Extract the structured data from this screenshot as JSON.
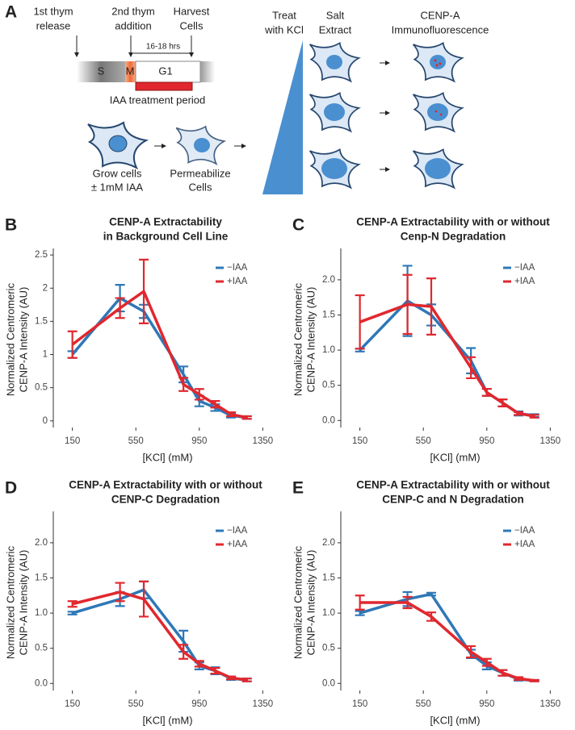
{
  "panel_a": {
    "label": "A",
    "timeline": {
      "release": [
        "1st thym",
        "release"
      ],
      "addition": [
        "2nd thym",
        "addition"
      ],
      "harvest": [
        "Harvest",
        "Cells"
      ],
      "duration": "16-18 hrs",
      "phases": [
        "S",
        "M",
        "G1"
      ],
      "treatment": "IAA treatment period"
    },
    "steps": {
      "grow": [
        "Grow cells",
        "± 1mM IAA"
      ],
      "permeabilize": [
        "Permeabilize",
        "Cells"
      ],
      "treat": [
        "Treat",
        "with KCl"
      ],
      "extract": [
        "Salt",
        "Extract"
      ],
      "immuno": [
        "CENP-A",
        "Immunofluorescence"
      ]
    }
  },
  "chart_data": [
    {
      "type": "line",
      "label": "B",
      "title": [
        "CENP-A Extractability",
        "in Background Cell Line"
      ],
      "xlabel": "[KCl] (mM)",
      "ylabel": [
        "Normalized Centromeric",
        "CENP-A Intensity (AU)"
      ],
      "x": [
        150,
        450,
        600,
        850,
        950,
        1050,
        1150,
        1250
      ],
      "xlim": [
        50,
        1450
      ],
      "xticks": [
        150,
        550,
        950,
        1350
      ],
      "ylim": [
        -0.1,
        2.55
      ],
      "yticks": [
        0,
        0.5,
        1,
        1.5,
        2,
        2.5
      ],
      "yticklabels_fixed": false,
      "legend": "upper right",
      "series": [
        {
          "name": "−IAA",
          "color": "#2e78b7",
          "values": [
            1.0,
            1.85,
            1.65,
            0.7,
            0.3,
            0.2,
            0.08,
            0.05
          ],
          "errors": [
            0.05,
            0.2,
            0.1,
            0.12,
            0.08,
            0.05,
            0.03,
            0.02
          ]
        },
        {
          "name": "+IAA",
          "color": "#e0282e",
          "values": [
            1.15,
            1.7,
            1.95,
            0.55,
            0.4,
            0.25,
            0.1,
            0.05
          ],
          "errors": [
            0.2,
            0.15,
            0.48,
            0.1,
            0.08,
            0.05,
            0.03,
            0.02
          ]
        }
      ]
    },
    {
      "type": "line",
      "label": "C",
      "title": [
        "CENP-A Extractability with or without",
        "Cenp-N Degradation"
      ],
      "xlabel": "[KCl] (mM)",
      "ylabel": [
        "Normalized Centromeric",
        "CENP-A Intensity (AU)"
      ],
      "x": [
        150,
        450,
        600,
        850,
        950,
        1050,
        1150,
        1250
      ],
      "xlim": [
        50,
        1450
      ],
      "xticks": [
        150,
        550,
        950,
        1350
      ],
      "ylim": [
        -0.1,
        2.4
      ],
      "yticks": [
        {
          "value": 0,
          "label": "0.0"
        },
        0.5,
        {
          "value": 1,
          "label": "1.0"
        },
        1.5,
        {
          "value": 2,
          "label": "2.0"
        }
      ],
      "legend": "upper right",
      "series": [
        {
          "name": "−IAA",
          "color": "#2e78b7",
          "values": [
            1.0,
            1.7,
            1.5,
            0.85,
            0.4,
            0.25,
            0.1,
            0.07
          ],
          "errors": [
            0.02,
            0.5,
            0.15,
            0.18,
            0.05,
            0.05,
            0.03,
            0.02
          ]
        },
        {
          "name": "+IAA",
          "color": "#e0282e",
          "values": [
            1.4,
            1.65,
            1.62,
            0.75,
            0.4,
            0.25,
            0.1,
            0.06
          ],
          "errors": [
            0.38,
            0.42,
            0.4,
            0.15,
            0.05,
            0.05,
            0.02,
            0.02
          ]
        }
      ]
    },
    {
      "type": "line",
      "label": "D",
      "title": [
        "CENP-A Extractability with or without",
        "CENP-C Degradation"
      ],
      "xlabel": "[KCl] (mM)",
      "ylabel": [
        "Normalized Centromeric",
        "CENP-A Intensity (AU)"
      ],
      "x": [
        150,
        450,
        600,
        850,
        950,
        1050,
        1150,
        1250
      ],
      "xlim": [
        50,
        1450
      ],
      "xticks": [
        150,
        550,
        950,
        1350
      ],
      "ylim": [
        -0.1,
        2.4
      ],
      "yticks": [
        {
          "value": 0,
          "label": "0.0"
        },
        0.5,
        {
          "value": 1,
          "label": "1.0"
        },
        1.5,
        {
          "value": 2,
          "label": "2.0"
        }
      ],
      "legend": "upper right",
      "series": [
        {
          "name": "−IAA",
          "color": "#2e78b7",
          "values": [
            1.0,
            1.2,
            1.33,
            0.6,
            0.25,
            0.18,
            0.07,
            0.05
          ],
          "errors": [
            0.02,
            0.1,
            0.12,
            0.15,
            0.05,
            0.05,
            0.02,
            0.02
          ]
        },
        {
          "name": "+IAA",
          "color": "#e0282e",
          "values": [
            1.13,
            1.3,
            1.2,
            0.45,
            0.28,
            0.18,
            0.08,
            0.05
          ],
          "errors": [
            0.04,
            0.13,
            0.25,
            0.1,
            0.04,
            0.04,
            0.02,
            0.02
          ]
        }
      ]
    },
    {
      "type": "line",
      "label": "E",
      "title": [
        "CENP-A Extractability with or without",
        "CENP-C and N Degradation"
      ],
      "xlabel": "[KCl] (mM)",
      "ylabel": [
        "Normalized Centromeric",
        "CENP-A Intensity (AU)"
      ],
      "x": [
        150,
        450,
        600,
        850,
        950,
        1050,
        1150,
        1250
      ],
      "xlim": [
        50,
        1450
      ],
      "xticks": [
        150,
        550,
        950,
        1350
      ],
      "ylim": [
        -0.1,
        2.4
      ],
      "yticks": [
        {
          "value": 0,
          "label": "0.0"
        },
        0.5,
        {
          "value": 1,
          "label": "1.0"
        },
        1.5,
        {
          "value": 2,
          "label": "2.0"
        }
      ],
      "legend": "upper right",
      "series": [
        {
          "name": "−IAA",
          "color": "#2e78b7",
          "values": [
            1.0,
            1.2,
            1.27,
            0.42,
            0.25,
            0.15,
            0.06,
            0.04
          ],
          "errors": [
            0.03,
            0.1,
            0.02,
            0.06,
            0.05,
            0.04,
            0.02,
            0.01
          ]
        },
        {
          "name": "+IAA",
          "color": "#e0282e",
          "values": [
            1.15,
            1.15,
            0.95,
            0.45,
            0.3,
            0.15,
            0.07,
            0.04
          ],
          "errors": [
            0.1,
            0.08,
            0.06,
            0.08,
            0.05,
            0.04,
            0.02,
            0.01
          ]
        }
      ]
    }
  ]
}
